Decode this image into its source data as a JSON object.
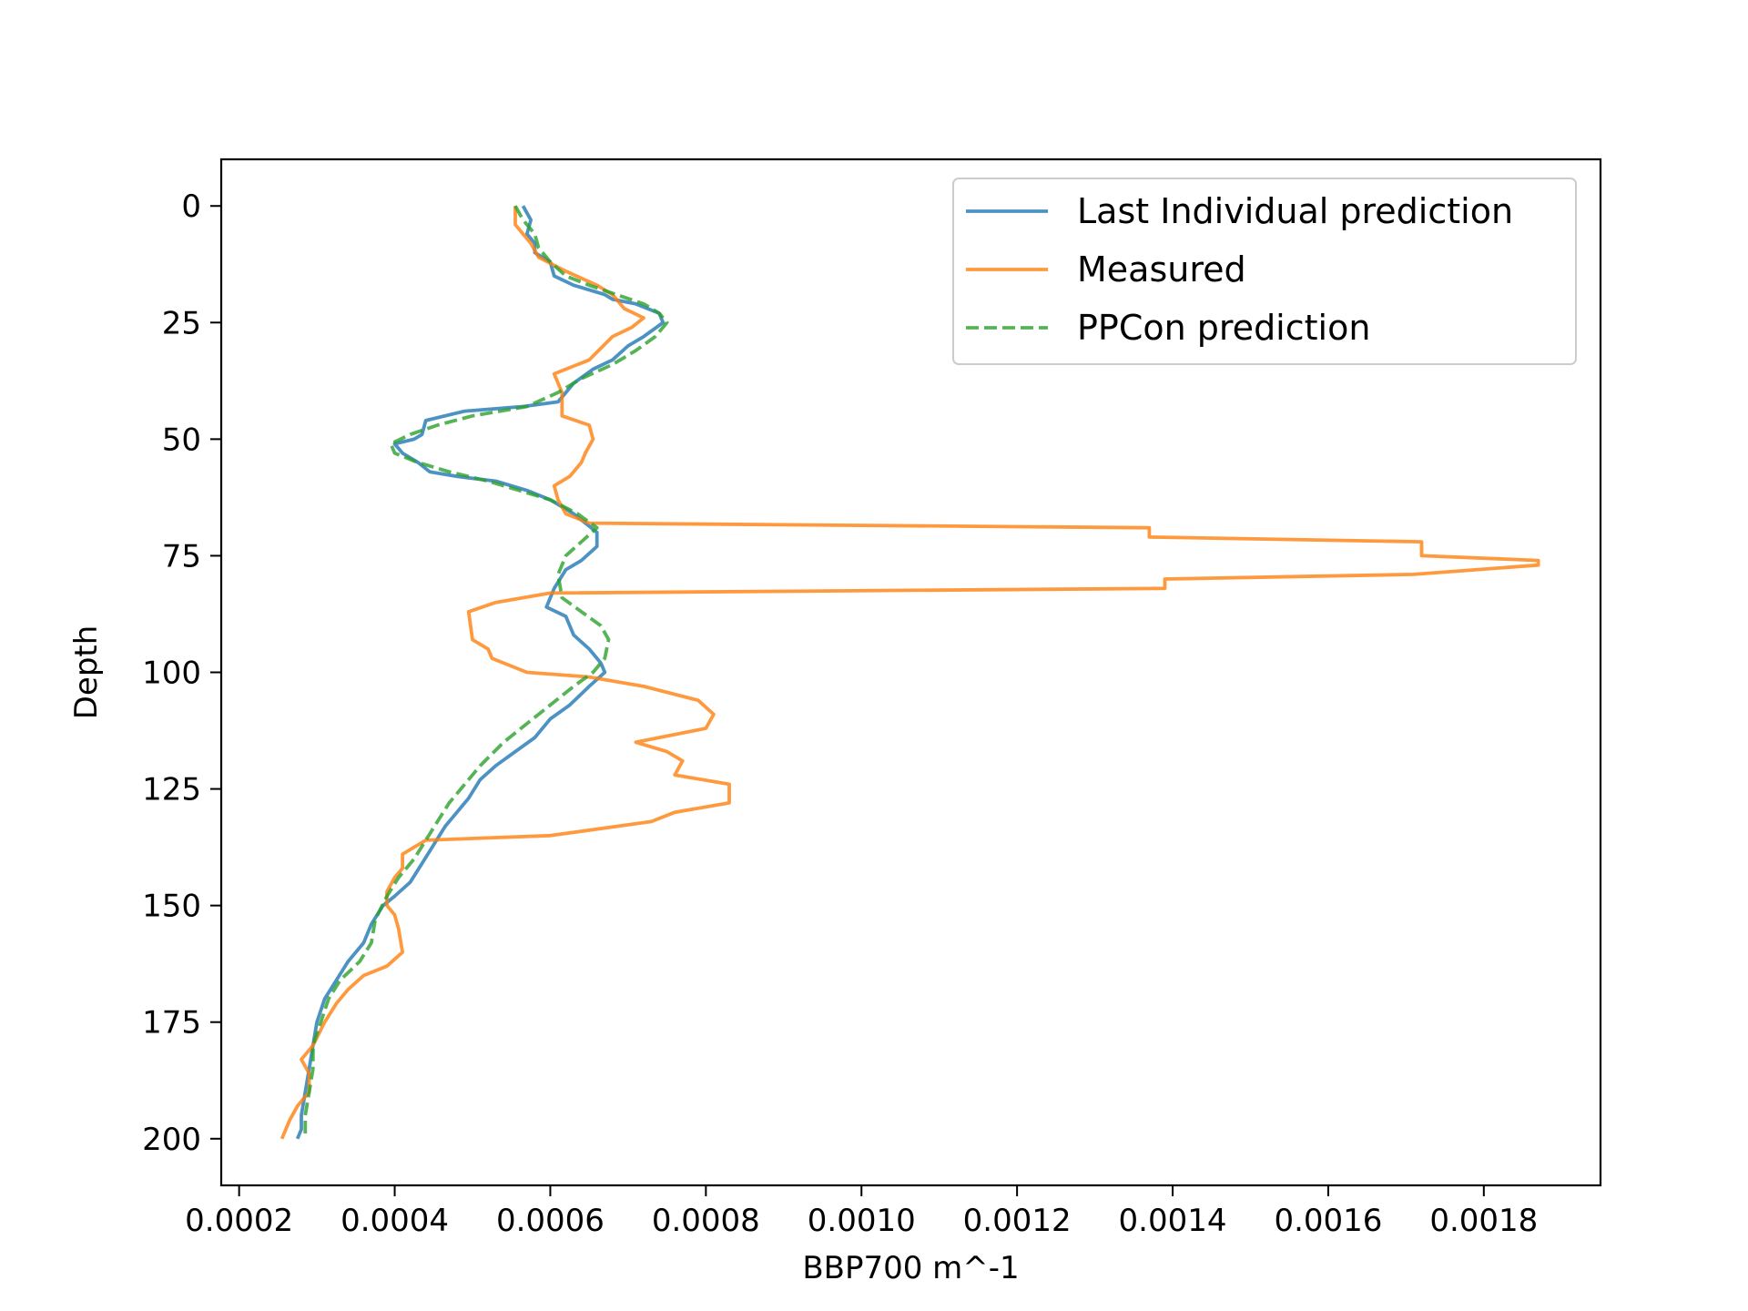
{
  "chart_data": {
    "type": "line",
    "title": "",
    "xlabel": "BBP700 m^-1",
    "ylabel": "Depth",
    "xlim": [
      0.000177,
      0.00195
    ],
    "ylim": [
      210,
      -10
    ],
    "y_inverted": true,
    "grid": false,
    "legend_position": "top-right",
    "x_ticks": [
      0.0002,
      0.0004,
      0.0006,
      0.0008,
      0.001,
      0.0012,
      0.0014,
      0.0016,
      0.0018
    ],
    "x_tick_labels": [
      "0.0002",
      "0.0004",
      "0.0006",
      "0.0008",
      "0.0010",
      "0.0012",
      "0.0014",
      "0.0016",
      "0.0018"
    ],
    "y_ticks": [
      0,
      25,
      50,
      75,
      100,
      125,
      150,
      175,
      200
    ],
    "y_tick_labels": [
      "0",
      "25",
      "50",
      "75",
      "100",
      "125",
      "150",
      "175",
      "200"
    ],
    "series": [
      {
        "name": "Last Individual prediction",
        "color": "#1f77b4",
        "style": "solid",
        "points": [
          [
            0.000565,
            0
          ],
          [
            0.000575,
            3
          ],
          [
            0.00057,
            6
          ],
          [
            0.00058,
            8
          ],
          [
            0.00058,
            10
          ],
          [
            0.0006,
            12
          ],
          [
            0.000605,
            15
          ],
          [
            0.00063,
            17
          ],
          [
            0.00067,
            19
          ],
          [
            0.00068,
            20
          ],
          [
            0.00071,
            21
          ],
          [
            0.00074,
            23
          ],
          [
            0.000745,
            25
          ],
          [
            0.00072,
            28
          ],
          [
            0.0007,
            30
          ],
          [
            0.00068,
            33
          ],
          [
            0.000655,
            35
          ],
          [
            0.00063,
            38
          ],
          [
            0.00061,
            42
          ],
          [
            0.000565,
            43
          ],
          [
            0.00049,
            44
          ],
          [
            0.00044,
            46
          ],
          [
            0.000435,
            49
          ],
          [
            0.000425,
            50
          ],
          [
            0.0004,
            51
          ],
          [
            0.00041,
            53
          ],
          [
            0.00043,
            55
          ],
          [
            0.000445,
            57
          ],
          [
            0.00048,
            58
          ],
          [
            0.00053,
            59
          ],
          [
            0.00057,
            61
          ],
          [
            0.0006,
            63
          ],
          [
            0.00063,
            66
          ],
          [
            0.00066,
            70
          ],
          [
            0.00066,
            73
          ],
          [
            0.00064,
            76
          ],
          [
            0.00062,
            78
          ],
          [
            0.000605,
            82
          ],
          [
            0.000595,
            86
          ],
          [
            0.00062,
            88
          ],
          [
            0.00063,
            92
          ],
          [
            0.00065,
            95
          ],
          [
            0.000665,
            98
          ],
          [
            0.00067,
            100
          ],
          [
            0.00065,
            103
          ],
          [
            0.000625,
            107
          ],
          [
            0.0006,
            110
          ],
          [
            0.00058,
            114
          ],
          [
            0.000555,
            117
          ],
          [
            0.00053,
            120
          ],
          [
            0.00051,
            123
          ],
          [
            0.000495,
            127
          ],
          [
            0.00048,
            130
          ],
          [
            0.000465,
            133
          ],
          [
            0.00045,
            137
          ],
          [
            0.000435,
            141
          ],
          [
            0.00042,
            145
          ],
          [
            0.0004,
            148
          ],
          [
            0.000385,
            150
          ],
          [
            0.00037,
            154
          ],
          [
            0.00036,
            158
          ],
          [
            0.00034,
            162
          ],
          [
            0.000325,
            166
          ],
          [
            0.00031,
            170
          ],
          [
            0.0003,
            175
          ],
          [
            0.000295,
            180
          ],
          [
            0.00029,
            185
          ],
          [
            0.000285,
            190
          ],
          [
            0.00028,
            195
          ],
          [
            0.00028,
            198
          ],
          [
            0.000275,
            200
          ]
        ]
      },
      {
        "name": "Measured",
        "color": "#ff7f0e",
        "style": "solid",
        "points": [
          [
            0.000555,
            0
          ],
          [
            0.000555,
            4
          ],
          [
            0.000565,
            6
          ],
          [
            0.000575,
            8
          ],
          [
            0.000585,
            11
          ],
          [
            0.00062,
            14
          ],
          [
            0.00066,
            17
          ],
          [
            0.00068,
            19
          ],
          [
            0.000695,
            22
          ],
          [
            0.00072,
            24
          ],
          [
            0.000705,
            26
          ],
          [
            0.00068,
            28
          ],
          [
            0.00065,
            33
          ],
          [
            0.000605,
            36
          ],
          [
            0.000615,
            40
          ],
          [
            0.000615,
            45
          ],
          [
            0.00065,
            47
          ],
          [
            0.000655,
            50
          ],
          [
            0.000645,
            53
          ],
          [
            0.00064,
            55
          ],
          [
            0.000625,
            58
          ],
          [
            0.000605,
            60
          ],
          [
            0.00061,
            63
          ],
          [
            0.00062,
            66
          ],
          [
            0.00065,
            68
          ],
          [
            0.00137,
            69
          ],
          [
            0.00137,
            71
          ],
          [
            0.00172,
            72
          ],
          [
            0.00172,
            75
          ],
          [
            0.00187,
            76
          ],
          [
            0.00187,
            77
          ],
          [
            0.00171,
            79
          ],
          [
            0.00139,
            80
          ],
          [
            0.00139,
            82
          ],
          [
            0.0006,
            83
          ],
          [
            0.00053,
            85
          ],
          [
            0.000495,
            87
          ],
          [
            0.0005,
            93
          ],
          [
            0.00052,
            95
          ],
          [
            0.000525,
            97
          ],
          [
            0.00057,
            100
          ],
          [
            0.00065,
            101
          ],
          [
            0.00072,
            103
          ],
          [
            0.00079,
            106
          ],
          [
            0.00081,
            109
          ],
          [
            0.0008,
            112
          ],
          [
            0.00071,
            115
          ],
          [
            0.00075,
            117
          ],
          [
            0.00077,
            119
          ],
          [
            0.00076,
            122
          ],
          [
            0.00083,
            124
          ],
          [
            0.00083,
            128
          ],
          [
            0.00076,
            130
          ],
          [
            0.00073,
            132
          ],
          [
            0.0006,
            135
          ],
          [
            0.00044,
            136
          ],
          [
            0.00041,
            139
          ],
          [
            0.00041,
            142
          ],
          [
            0.0004,
            144
          ],
          [
            0.00039,
            147
          ],
          [
            0.00039,
            150
          ],
          [
            0.0004,
            152
          ],
          [
            0.000405,
            155
          ],
          [
            0.00041,
            160
          ],
          [
            0.00039,
            163
          ],
          [
            0.00036,
            165
          ],
          [
            0.00034,
            168
          ],
          [
            0.000325,
            171
          ],
          [
            0.00031,
            175
          ],
          [
            0.000295,
            180
          ],
          [
            0.00028,
            183
          ],
          [
            0.00029,
            186
          ],
          [
            0.00029,
            190
          ],
          [
            0.000275,
            193
          ],
          [
            0.000265,
            196
          ],
          [
            0.000255,
            200
          ]
        ]
      },
      {
        "name": "PPCon prediction",
        "color": "#2ca02c",
        "style": "dashed",
        "points": [
          [
            0.000555,
            0
          ],
          [
            0.000565,
            3
          ],
          [
            0.00058,
            6
          ],
          [
            0.000585,
            9
          ],
          [
            0.0006,
            12
          ],
          [
            0.00062,
            15
          ],
          [
            0.00065,
            17
          ],
          [
            0.000685,
            19
          ],
          [
            0.00072,
            21
          ],
          [
            0.00074,
            23
          ],
          [
            0.00075,
            25
          ],
          [
            0.000735,
            28
          ],
          [
            0.00071,
            31
          ],
          [
            0.00068,
            34
          ],
          [
            0.00064,
            37
          ],
          [
            0.00061,
            40
          ],
          [
            0.00057,
            43
          ],
          [
            0.0005,
            45
          ],
          [
            0.000455,
            47
          ],
          [
            0.00042,
            49
          ],
          [
            0.000395,
            51
          ],
          [
            0.0004,
            53
          ],
          [
            0.00043,
            55
          ],
          [
            0.00047,
            57
          ],
          [
            0.00052,
            59
          ],
          [
            0.00056,
            61
          ],
          [
            0.0006,
            63
          ],
          [
            0.000635,
            66
          ],
          [
            0.00066,
            69
          ],
          [
            0.00064,
            72
          ],
          [
            0.00062,
            75
          ],
          [
            0.00061,
            79
          ],
          [
            0.000615,
            84
          ],
          [
            0.00064,
            87
          ],
          [
            0.000665,
            90
          ],
          [
            0.000675,
            93
          ],
          [
            0.00067,
            97
          ],
          [
            0.000655,
            100
          ],
          [
            0.00063,
            103
          ],
          [
            0.0006,
            107
          ],
          [
            0.00057,
            111
          ],
          [
            0.00054,
            115
          ],
          [
            0.00051,
            120
          ],
          [
            0.00049,
            124
          ],
          [
            0.00047,
            128
          ],
          [
            0.000455,
            132
          ],
          [
            0.00044,
            136
          ],
          [
            0.000425,
            140
          ],
          [
            0.000405,
            144
          ],
          [
            0.00039,
            148
          ],
          [
            0.000375,
            153
          ],
          [
            0.00037,
            158
          ],
          [
            0.000355,
            162
          ],
          [
            0.00033,
            166
          ],
          [
            0.000315,
            170
          ],
          [
            0.000305,
            175
          ],
          [
            0.000295,
            180
          ],
          [
            0.000295,
            185
          ],
          [
            0.00029,
            190
          ],
          [
            0.000285,
            195
          ],
          [
            0.000285,
            200
          ]
        ]
      }
    ]
  }
}
